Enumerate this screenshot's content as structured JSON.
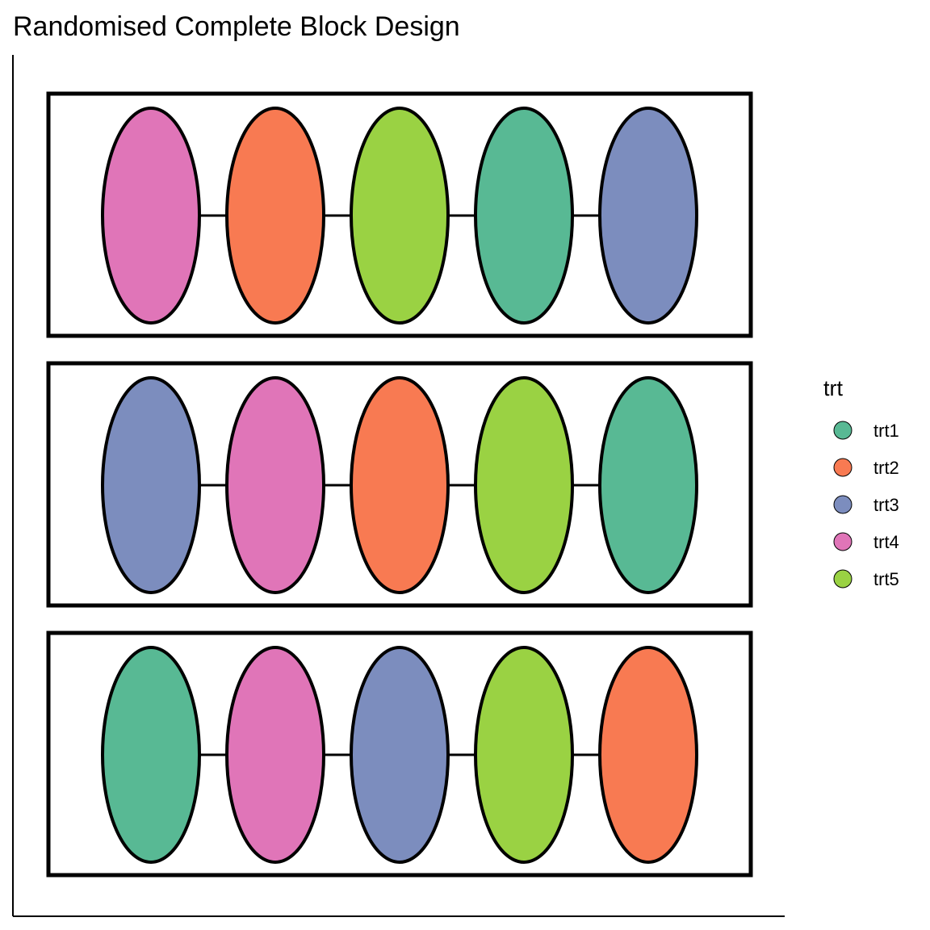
{
  "title": "Randomised Complete Block Design",
  "legend": {
    "title": "trt",
    "items": [
      {
        "label": "trt1",
        "color": "#58B994"
      },
      {
        "label": "trt2",
        "color": "#F87A52"
      },
      {
        "label": "trt3",
        "color": "#7C8DBE"
      },
      {
        "label": "trt4",
        "color": "#E075B8"
      },
      {
        "label": "trt5",
        "color": "#9AD243"
      }
    ]
  },
  "blocks": [
    {
      "plots": [
        "trt4",
        "trt2",
        "trt5",
        "trt1",
        "trt3"
      ]
    },
    {
      "plots": [
        "trt3",
        "trt4",
        "trt2",
        "trt5",
        "trt1"
      ]
    },
    {
      "plots": [
        "trt1",
        "trt4",
        "trt3",
        "trt5",
        "trt2"
      ]
    }
  ]
}
